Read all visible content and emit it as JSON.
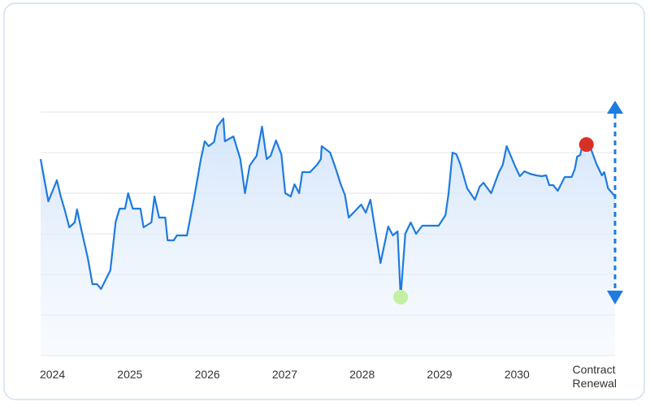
{
  "chart_data": {
    "type": "area",
    "x": [
      2024.0,
      2024.1,
      2024.21,
      2024.26,
      2024.31,
      2024.37,
      2024.44,
      2024.47,
      2024.52,
      2024.61,
      2024.67,
      2024.73,
      2024.78,
      2024.9,
      2024.97,
      2025.02,
      2025.09,
      2025.13,
      2025.19,
      2025.29,
      2025.33,
      2025.43,
      2025.47,
      2025.53,
      2025.61,
      2025.64,
      2025.72,
      2025.76,
      2025.89,
      2025.99,
      2026.07,
      2026.12,
      2026.17,
      2026.24,
      2026.28,
      2026.36,
      2026.38,
      2026.49,
      2026.58,
      2026.64,
      2026.7,
      2026.79,
      2026.86,
      2026.92,
      2026.97,
      2027.04,
      2027.11,
      2027.16,
      2027.23,
      2027.28,
      2027.34,
      2027.38,
      2027.48,
      2027.57,
      2027.62,
      2027.63,
      2027.74,
      2027.82,
      2027.88,
      2027.93,
      2027.98,
      2028.14,
      2028.2,
      2028.26,
      2028.32,
      2028.39,
      2028.49,
      2028.55,
      2028.61,
      2028.65,
      2028.71,
      2028.78,
      2028.85,
      2028.93,
      2029.14,
      2029.23,
      2029.27,
      2029.32,
      2029.37,
      2029.42,
      2029.51,
      2029.61,
      2029.67,
      2029.72,
      2029.82,
      2029.92,
      2029.97,
      2030.02,
      2030.13,
      2030.19,
      2030.25,
      2030.32,
      2030.4,
      2030.47,
      2030.53,
      2030.57,
      2030.62,
      2030.68,
      2030.77,
      2030.86,
      2030.9,
      2030.93,
      2030.97,
      2030.99,
      2031.05,
      2031.11,
      2031.18,
      2031.25,
      2031.28,
      2031.33,
      2031.42
    ],
    "series": [
      {
        "color": "#1e7be0",
        "values": [
          242,
          190,
          216,
          196,
          180,
          158,
          164,
          180,
          158,
          120,
          88,
          88,
          82,
          105,
          165,
          181,
          181,
          200,
          181,
          181,
          158,
          164,
          196,
          170,
          170,
          142,
          142,
          148,
          148,
          198,
          242,
          264,
          258,
          263,
          282,
          292,
          264,
          270,
          242,
          200,
          234,
          246,
          282,
          242,
          246,
          265,
          248,
          200,
          196,
          211,
          200,
          226,
          226,
          235,
          242,
          258,
          250,
          228,
          210,
          198,
          170,
          186,
          176,
          192,
          156,
          114,
          159,
          148,
          153,
          72,
          150,
          164,
          150,
          160,
          160,
          173,
          200,
          250,
          248,
          236,
          206,
          192,
          208,
          213,
          200,
          226,
          235,
          258,
          233,
          221,
          227,
          224,
          222,
          221,
          222,
          210,
          210,
          203,
          220,
          220,
          230,
          245,
          247,
          256,
          260,
          254,
          236,
          222,
          226,
          206,
          196
        ]
      }
    ],
    "markers": [
      {
        "x": 2028.65,
        "y": 72,
        "color": "#c5f0a4"
      },
      {
        "x": 2031.05,
        "y": 260,
        "color": "#d93025"
      }
    ],
    "xlim": [
      2024,
      2031.42
    ],
    "xticks": [
      2024,
      2025,
      2026,
      2027,
      2028,
      2029,
      2030,
      {
        "value": 2030.88,
        "label": "Contract Renewal"
      }
    ],
    "ylim": [
      0,
      300
    ],
    "yticks": [
      0,
      50,
      100,
      150,
      200,
      250,
      300
    ],
    "grid": true
  }
}
